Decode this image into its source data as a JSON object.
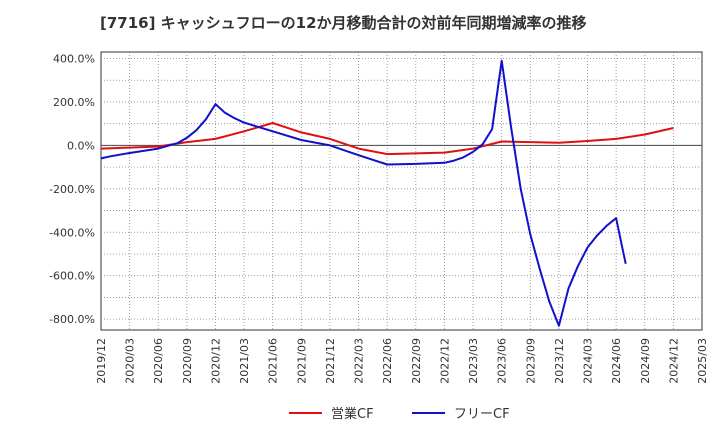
{
  "chart_data": {
    "type": "line",
    "title": "[7716]  キャッシュフローの12か月移動合計の対前年同期増減率の推移",
    "xlabel": "",
    "ylabel": "",
    "ylim": [
      -850,
      430
    ],
    "y_ticks": [
      "400.0%",
      "200.0%",
      "0.0%",
      "-200.0%",
      "-400.0%",
      "-600.0%",
      "-800.0%"
    ],
    "y_tick_values": [
      400,
      200,
      0,
      -200,
      -400,
      -600,
      -800
    ],
    "x_ticks": [
      "2019/12",
      "2020/03",
      "2020/06",
      "2020/09",
      "2020/12",
      "2021/03",
      "2021/06",
      "2021/09",
      "2021/12",
      "2022/03",
      "2022/06",
      "2022/09",
      "2022/12",
      "2023/03",
      "2023/06",
      "2023/09",
      "2023/12",
      "2024/03",
      "2024/06",
      "2024/09",
      "2024/12",
      "2025/03"
    ],
    "grid": true,
    "legend_position": "bottom",
    "series": [
      {
        "name": "営業CF",
        "color": "#dd1111",
        "points": [
          [
            "2019/12",
            -15
          ],
          [
            "2020/03",
            -10
          ],
          [
            "2020/06",
            -5
          ],
          [
            "2020/09",
            15
          ],
          [
            "2020/12",
            30
          ],
          [
            "2021/03",
            65
          ],
          [
            "2021/06",
            103
          ],
          [
            "2021/09",
            60
          ],
          [
            "2021/12",
            30
          ],
          [
            "2022/03",
            -15
          ],
          [
            "2022/06",
            -40
          ],
          [
            "2022/09",
            -37
          ],
          [
            "2022/12",
            -33
          ],
          [
            "2023/03",
            -15
          ],
          [
            "2023/06",
            18
          ],
          [
            "2023/09",
            15
          ],
          [
            "2023/12",
            12
          ],
          [
            "2024/03",
            20
          ],
          [
            "2024/06",
            30
          ],
          [
            "2024/09",
            50
          ],
          [
            "2024/12",
            80
          ]
        ]
      },
      {
        "name": "フリーCF",
        "color": "#1111cc",
        "points": [
          [
            "2019/12",
            -60
          ],
          [
            "2020/01",
            -50
          ],
          [
            "2020/03",
            -35
          ],
          [
            "2020/06",
            -15
          ],
          [
            "2020/08",
            10
          ],
          [
            "2020/09",
            35
          ],
          [
            "2020/10",
            70
          ],
          [
            "2020/11",
            120
          ],
          [
            "2020/12",
            190
          ],
          [
            "2021/01",
            150
          ],
          [
            "2021/02",
            125
          ],
          [
            "2021/03",
            105
          ],
          [
            "2021/06",
            65
          ],
          [
            "2021/09",
            25
          ],
          [
            "2021/12",
            0
          ],
          [
            "2022/03",
            -45
          ],
          [
            "2022/06",
            -88
          ],
          [
            "2022/09",
            -85
          ],
          [
            "2022/12",
            -80
          ],
          [
            "2023/01",
            -70
          ],
          [
            "2023/02",
            -55
          ],
          [
            "2023/03",
            -30
          ],
          [
            "2023/04",
            5
          ],
          [
            "2023/05",
            75
          ],
          [
            "2023/06",
            390
          ],
          [
            "2023/07",
            80
          ],
          [
            "2023/08",
            -200
          ],
          [
            "2023/09",
            -410
          ],
          [
            "2023/10",
            -570
          ],
          [
            "2023/11",
            -720
          ],
          [
            "2023/12",
            -830
          ],
          [
            "2024/01",
            -660
          ],
          [
            "2024/02",
            -555
          ],
          [
            "2024/03",
            -470
          ],
          [
            "2024/04",
            -415
          ],
          [
            "2024/05",
            -370
          ],
          [
            "2024/06",
            -335
          ],
          [
            "2024/07",
            -545
          ]
        ]
      }
    ]
  }
}
